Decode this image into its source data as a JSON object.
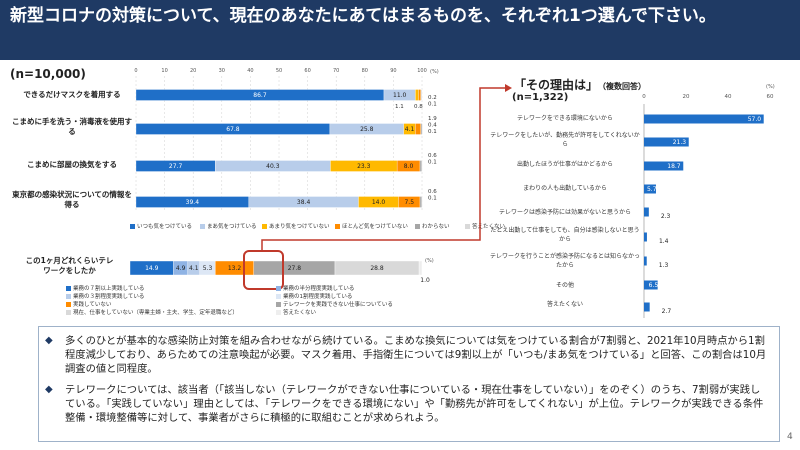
{
  "header": {
    "title": "新型コロナの対策について、現在のあなたにあてはまるものを、それぞれ1つ選んで下さい。"
  },
  "sample": {
    "n_main": "(n=10,000)"
  },
  "colors": {
    "itsumo": "#1f6fc8",
    "maa": "#b8cdea",
    "amari": "#ffb900",
    "hotondo": "#ff8c00",
    "wakaranai": "#a6a6a6",
    "kotaenai": "#d9d9d9"
  },
  "chart_data": [
    {
      "type": "bar",
      "orientation": "horizontal",
      "stacked": true,
      "xlim": [
        0,
        100
      ],
      "x_ticks": [
        "0",
        "10",
        "20",
        "30",
        "40",
        "50",
        "60",
        "70",
        "80",
        "90",
        "100"
      ],
      "unit": "(%)",
      "categories": [
        "できるだけマスクを着用する",
        "こまめに手を洗う・消毒液を使用する",
        "こまめに部屋の換気をする",
        "東京都の感染状況についての情報を得る"
      ],
      "series": [
        {
          "name": "いつも気をつけている",
          "values": [
            86.7,
            67.8,
            27.7,
            39.4
          ]
        },
        {
          "name": "まあ気をつけている",
          "values": [
            11.0,
            25.8,
            40.3,
            38.4
          ]
        },
        {
          "name": "あまり気をつけていない",
          "values": [
            1.1,
            4.1,
            23.3,
            14.0
          ]
        },
        {
          "name": "ほとんど気をつけていない",
          "values": [
            0.8,
            1.9,
            8.0,
            7.5
          ]
        },
        {
          "name": "わからない",
          "values": [
            0.2,
            0.4,
            0.6,
            0.6
          ]
        },
        {
          "name": "答えたくない",
          "values": [
            0.1,
            0.1,
            0.1,
            0.1
          ]
        }
      ]
    },
    {
      "type": "bar",
      "orientation": "horizontal",
      "stacked": true,
      "xlim": [
        0,
        100
      ],
      "unit": "(%)",
      "categories": [
        "この1ヶ月どれくらいテレワークをしたか"
      ],
      "series": [
        {
          "name": "業務の７割以上実践している",
          "values": [
            14.9
          ]
        },
        {
          "name": "業務の半分程度実践している",
          "values": [
            4.9
          ]
        },
        {
          "name": "業務の３割程度実践している",
          "values": [
            4.1
          ]
        },
        {
          "name": "業務の1割程度実践している",
          "values": [
            5.3
          ]
        },
        {
          "name": "実践していない",
          "values": [
            13.2
          ]
        },
        {
          "name": "テレワークを実践できない仕事についている",
          "values": [
            27.8
          ]
        },
        {
          "name": "現在、仕事をしていない（専業主婦・主夫、学生、定年退職など）",
          "values": [
            28.8
          ]
        },
        {
          "name": "答えたくない",
          "values": [
            1.0
          ]
        }
      ]
    },
    {
      "type": "bar",
      "orientation": "horizontal",
      "title": "「その理由は」",
      "subtitle": "（複数回答）",
      "n": "(n=1,322)",
      "xlim": [
        0,
        60
      ],
      "x_ticks": [
        "0",
        "20",
        "40",
        "60"
      ],
      "unit": "(%)",
      "categories": [
        "テレワークをできる環境にないから",
        "テレワークをしたいが、勤務先が許可をしてくれないから",
        "出勤したほうが仕事がはかどるから",
        "まわりの人も出勤しているから",
        "テレワークは感染予防には効果がないと思うから",
        "たとえ出勤して仕事をしても、自分は感染しないと思うから",
        "テレワークを行うことが感染予防になるとは知らなかったから",
        "その他",
        "答えたくない"
      ],
      "values": [
        57.0,
        21.3,
        18.7,
        5.7,
        2.3,
        1.4,
        1.3,
        6.5,
        2.7
      ]
    }
  ],
  "notes": [
    "多くのひとが基本的な感染防止対策を組み合わせながら続けている。こまめな換気については気をつけている割合が7割弱と、2021年10月時点から1割程度減少しており、あらためての注意喚起が必要。マスク着用、手指衛生については9割以上が「いつも/まあ気をつけている」と回答、この割合は10月調査の値と同程度。",
    "テレワークについては、該当者（「該当しない（テレワークができない仕事についている・現在仕事をしていない）」をのぞく）のうち、7割弱が実践している。「実践していない」理由としては、「テレワークをできる環境にない」や「勤務先が許可をしてくれない」が上位。テレワークが実践できる条件整備・環境整備等に対して、事業者がさらに積極的に取組むことが求められよう。"
  ],
  "page": {
    "number": "4"
  }
}
